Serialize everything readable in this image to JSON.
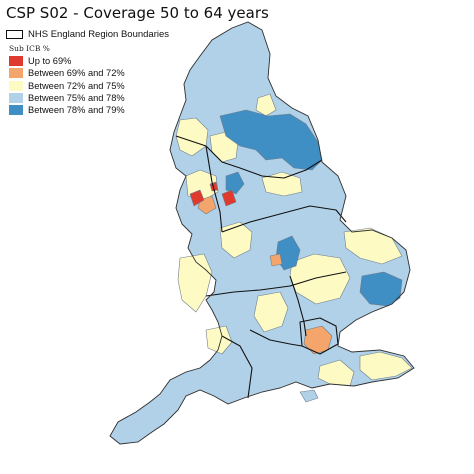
{
  "title": "CSP S02 - Coverage 50 to 64 years",
  "boundary_legend_label": "NHS England Region Boundaries",
  "legend_title": "Sub ICB %",
  "legend_items": [
    {
      "label": "Up to 69%",
      "color": "#e03a2f"
    },
    {
      "label": "Between 69% and 72%",
      "color": "#f4a56b"
    },
    {
      "label": "Between 72% and 75%",
      "color": "#fdfac3"
    },
    {
      "label": "Between 75% and 78%",
      "color": "#b1d1e8"
    },
    {
      "label": "Between 78% and 79%",
      "color": "#3f8ec4"
    }
  ],
  "colors": {
    "background": "#ffffff",
    "boundary": "#111111"
  }
}
